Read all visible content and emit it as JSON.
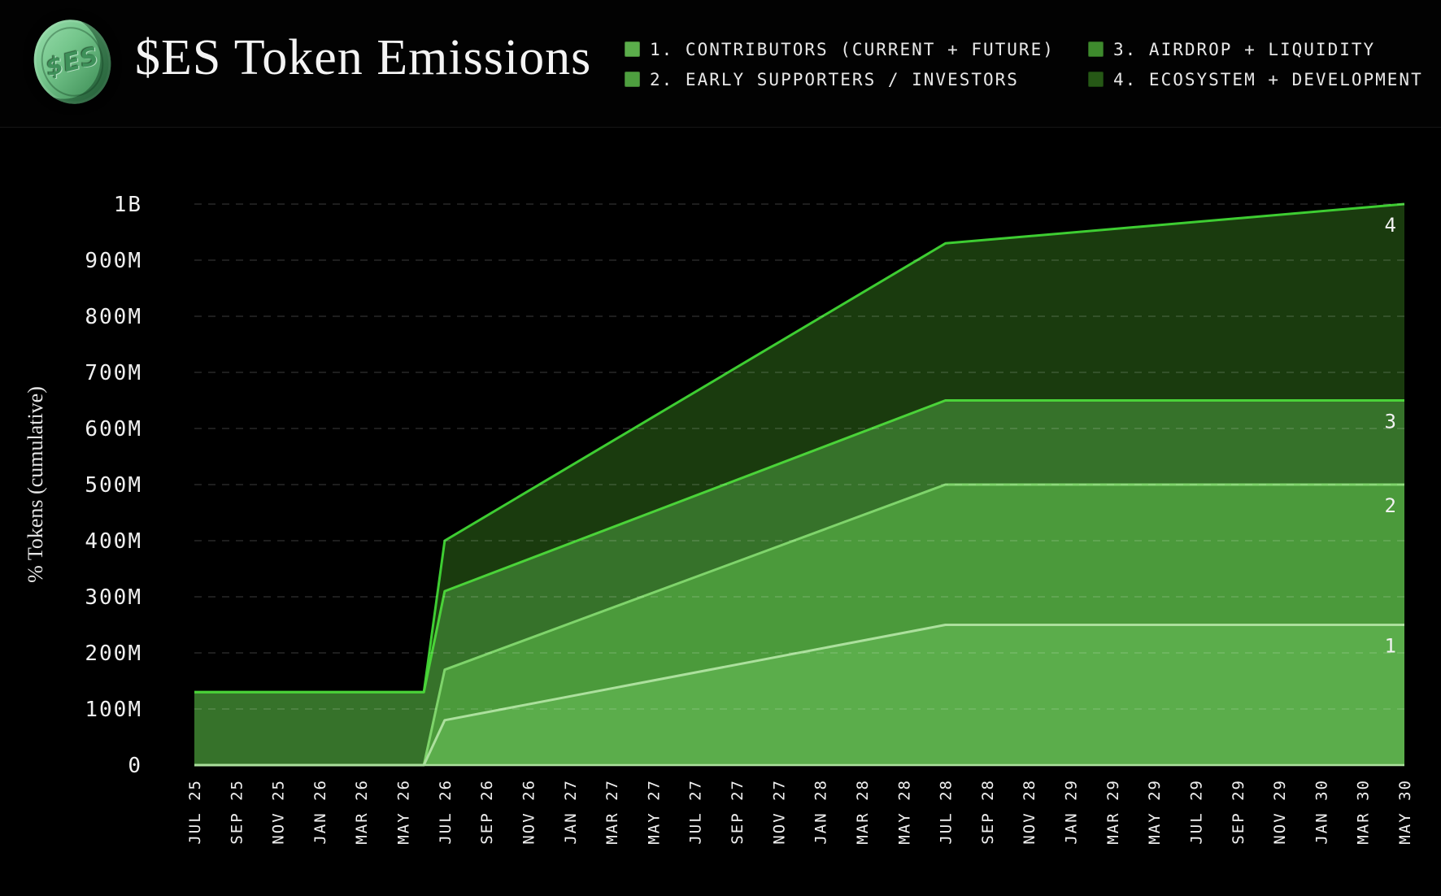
{
  "header": {
    "title": "$ES Token Emissions",
    "coin_text": "$ES"
  },
  "legend": {
    "items": [
      {
        "label": "1. CONTRIBUTORS (CURRENT + FUTURE)",
        "swatch_color": "#5bad4b",
        "swatch_border": "#437f35",
        "column": 1
      },
      {
        "label": "2. EARLY SUPPORTERS / INVESTORS",
        "swatch_color": "#4e9f3f",
        "swatch_border": "#3e7831",
        "column": 1
      },
      {
        "label": "3. AIRDROP + LIQUIDITY",
        "swatch_color": "#3e8a2d",
        "swatch_border": "#2b611e",
        "column": 2
      },
      {
        "label": "4. ECOSYSTEM + DEVELOPMENT",
        "swatch_color": "#265816",
        "swatch_border": "#19400e",
        "column": 2
      }
    ]
  },
  "chart_data": {
    "type": "area",
    "stacked": true,
    "title": "$ES Token Emissions",
    "ylabel": "% Tokens (cumulative)",
    "unit": "millions of tokens",
    "ylim": [
      0,
      1000
    ],
    "grid": "dashed horizontal at every 100M",
    "legend_position": "top header, two columns",
    "background_color": "#000000",
    "grid_color": "rgba(255,255,255,0.16)",
    "tick_text_color": "#f0f0f0",
    "x_tick_labels": [
      "JUL 25",
      "SEP 25",
      "NOV 25",
      "JAN 26",
      "MAR 26",
      "MAY 26",
      "JUL 26",
      "SEP 26",
      "NOV 26",
      "JAN 27",
      "MAR 27",
      "MAY 27",
      "JUL 27",
      "SEP 27",
      "NOV 27",
      "JAN 28",
      "MAR 28",
      "MAY 28",
      "JUL 28",
      "SEP 28",
      "NOV 28",
      "JAN 29",
      "MAR 29",
      "MAY 29",
      "JUL 29",
      "SEP 29",
      "NOV 29",
      "JAN 30",
      "MAR 30",
      "MAY 30"
    ],
    "months_total": 58,
    "y_ticks": [
      {
        "value": 0,
        "label": "0"
      },
      {
        "value": 100,
        "label": "100M"
      },
      {
        "value": 200,
        "label": "200M"
      },
      {
        "value": 300,
        "label": "300M"
      },
      {
        "value": 400,
        "label": "400M"
      },
      {
        "value": 500,
        "label": "500M"
      },
      {
        "value": 600,
        "label": "600M"
      },
      {
        "value": 700,
        "label": "700M"
      },
      {
        "value": 800,
        "label": "800M"
      },
      {
        "value": 900,
        "label": "900M"
      },
      {
        "value": 1000,
        "label": "1B"
      }
    ],
    "series": [
      {
        "name": "1. CONTRIBUTORS (CURRENT + FUTURE)",
        "area_label": "1",
        "fill_color": "#5bad4b",
        "line_color": "#ace09d",
        "points": [
          {
            "month": "JUL 25",
            "m": 0,
            "value": 0,
            "cumulative_top": 0
          },
          {
            "month": "JUN 26",
            "m": 11,
            "value": 0,
            "cumulative_top": 0
          },
          {
            "month": "JUL 26",
            "m": 12,
            "value": 80,
            "cumulative_top": 80
          },
          {
            "month": "JUL 28",
            "m": 36,
            "value": 250,
            "cumulative_top": 250
          },
          {
            "month": "MAY 30",
            "m": 58,
            "value": 250,
            "cumulative_top": 250
          }
        ]
      },
      {
        "name": "2. EARLY SUPPORTERS / INVESTORS",
        "area_label": "2",
        "fill_color": "#4b9a3b",
        "line_color": "#7fd46b",
        "points": [
          {
            "month": "JUL 25",
            "m": 0,
            "value": 0,
            "cumulative_top": 0
          },
          {
            "month": "JUN 26",
            "m": 11,
            "value": 0,
            "cumulative_top": 0
          },
          {
            "month": "JUL 26",
            "m": 12,
            "value": 90,
            "cumulative_top": 170
          },
          {
            "month": "JUL 28",
            "m": 36,
            "value": 250,
            "cumulative_top": 500
          },
          {
            "month": "MAY 30",
            "m": 58,
            "value": 250,
            "cumulative_top": 500
          }
        ]
      },
      {
        "name": "3. AIRDROP + LIQUIDITY",
        "area_label": "3",
        "fill_color": "#36722a",
        "line_color": "#4bd339",
        "points": [
          {
            "month": "JUL 25",
            "m": 0,
            "value": 130,
            "cumulative_top": 130
          },
          {
            "month": "JUN 26",
            "m": 11,
            "value": 130,
            "cumulative_top": 130
          },
          {
            "month": "JUL 26",
            "m": 12,
            "value": 140,
            "cumulative_top": 310
          },
          {
            "month": "JUL 28",
            "m": 36,
            "value": 150,
            "cumulative_top": 650
          },
          {
            "month": "MAY 30",
            "m": 58,
            "value": 150,
            "cumulative_top": 650
          }
        ]
      },
      {
        "name": "4. ECOSYSTEM + DEVELOPMENT",
        "area_label": "4",
        "fill_color": "#1a3b0e",
        "line_color": "#3ecd32",
        "points": [
          {
            "month": "JUL 25",
            "m": 0,
            "value": 0,
            "cumulative_top": 130
          },
          {
            "month": "JUN 26",
            "m": 11,
            "value": 0,
            "cumulative_top": 130
          },
          {
            "month": "JUL 26",
            "m": 12,
            "value": 90,
            "cumulative_top": 400
          },
          {
            "month": "JUL 28",
            "m": 36,
            "value": 280,
            "cumulative_top": 930
          },
          {
            "month": "MAY 30",
            "m": 58,
            "value": 350,
            "cumulative_top": 1000
          }
        ]
      }
    ]
  }
}
